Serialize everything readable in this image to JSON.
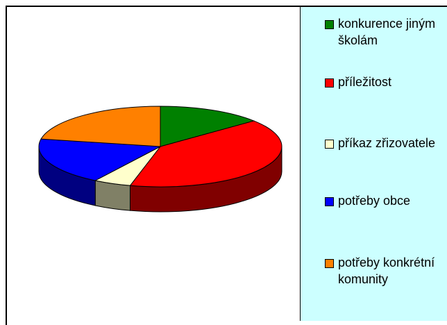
{
  "chart_data": {
    "type": "pie",
    "categories": [
      "konkurence jiným školám",
      "příležitost",
      "příkaz zřizovatele",
      "potřeby obce",
      "potřeby konkrétní komunity"
    ],
    "values": [
      14,
      40,
      5,
      19,
      22
    ],
    "colors": [
      "#008000",
      "#ff0000",
      "#ffffcc",
      "#0000ff",
      "#ff8000"
    ],
    "side_colors": [
      "#004000",
      "#800000",
      "#808066",
      "#000080",
      "#804000"
    ],
    "legend": "right"
  }
}
